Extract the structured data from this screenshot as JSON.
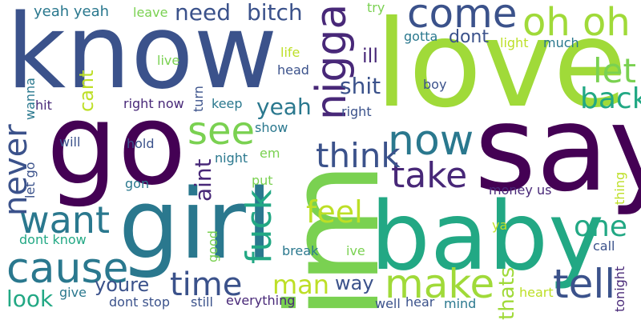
{
  "words": [
    {
      "text": "know",
      "color": "#3b528b"
    },
    {
      "text": "love",
      "color": "#a0da39"
    },
    {
      "text": "say",
      "color": "#440154"
    },
    {
      "text": "go",
      "color": "#440154"
    },
    {
      "text": "girl",
      "color": "#2a788e"
    },
    {
      "text": "baby",
      "color": "#22a884"
    },
    {
      "text": "im",
      "color": "#7ad151"
    },
    {
      "text": "nigga",
      "color": "#482878"
    },
    {
      "text": "come",
      "color": "#3b528b"
    },
    {
      "text": "oh oh",
      "color": "#a0da39"
    },
    {
      "text": "cause",
      "color": "#2a788e"
    },
    {
      "text": "now",
      "color": "#2a788e"
    },
    {
      "text": "make",
      "color": "#a0da39"
    },
    {
      "text": "take",
      "color": "#482878"
    },
    {
      "text": "see",
      "color": "#7ad151"
    },
    {
      "text": "want",
      "color": "#2a788e"
    },
    {
      "text": "tell",
      "color": "#3b528b"
    },
    {
      "text": "let",
      "color": "#7ad151"
    },
    {
      "text": "back",
      "color": "#22a884"
    },
    {
      "text": "time",
      "color": "#3b528b"
    },
    {
      "text": "never",
      "color": "#3b528b"
    },
    {
      "text": "think",
      "color": "#3b528b"
    },
    {
      "text": "one",
      "color": "#22a884"
    },
    {
      "text": "fuck",
      "color": "#22a884"
    },
    {
      "text": "feel",
      "color": "#bddf26"
    },
    {
      "text": "need",
      "color": "#3b528b"
    },
    {
      "text": "bitch",
      "color": "#3b528b"
    },
    {
      "text": "man",
      "color": "#bddf26"
    },
    {
      "text": "yeah",
      "color": "#2a788e"
    },
    {
      "text": "shit",
      "color": "#3b528b"
    },
    {
      "text": "aint",
      "color": "#482878"
    },
    {
      "text": "youre",
      "color": "#3b528b"
    },
    {
      "text": "way",
      "color": "#3b528b"
    },
    {
      "text": "look",
      "color": "#22a884"
    },
    {
      "text": "dont",
      "color": "#3b528b"
    },
    {
      "text": "thats",
      "color": "#a0da39"
    },
    {
      "text": "cant",
      "color": "#bddf26"
    },
    {
      "text": "ill",
      "color": "#482878"
    },
    {
      "text": "yeah yeah",
      "color": "#2a788e"
    },
    {
      "text": "leave",
      "color": "#7ad151"
    },
    {
      "text": "try",
      "color": "#7ad151"
    },
    {
      "text": "gotta",
      "color": "#2a788e"
    },
    {
      "text": "light",
      "color": "#bddf26"
    },
    {
      "text": "much",
      "color": "#2a788e"
    },
    {
      "text": "life",
      "color": "#bddf26"
    },
    {
      "text": "live",
      "color": "#7ad151"
    },
    {
      "text": "head",
      "color": "#3b528b"
    },
    {
      "text": "boy",
      "color": "#3b528b"
    },
    {
      "text": "right now",
      "color": "#482878"
    },
    {
      "text": "turn",
      "color": "#3b528b"
    },
    {
      "text": "keep",
      "color": "#2a788e"
    },
    {
      "text": "right",
      "color": "#3b528b"
    },
    {
      "text": "hit",
      "color": "#482878"
    },
    {
      "text": "wanna",
      "color": "#2a788e"
    },
    {
      "text": "will",
      "color": "#3b528b"
    },
    {
      "text": "hold",
      "color": "#3b528b"
    },
    {
      "text": "show",
      "color": "#2a788e"
    },
    {
      "text": "night",
      "color": "#2a788e"
    },
    {
      "text": "em",
      "color": "#7ad151"
    },
    {
      "text": "put",
      "color": "#7ad151"
    },
    {
      "text": "let go",
      "color": "#3b528b"
    },
    {
      "text": "gon",
      "color": "#2a788e"
    },
    {
      "text": "money",
      "color": "#482878"
    },
    {
      "text": "us",
      "color": "#482878"
    },
    {
      "text": "thing",
      "color": "#bddf26"
    },
    {
      "text": "dont know",
      "color": "#22a884"
    },
    {
      "text": "good",
      "color": "#7ad151"
    },
    {
      "text": "break",
      "color": "#2a788e"
    },
    {
      "text": "ive",
      "color": "#7ad151"
    },
    {
      "text": "ya",
      "color": "#bddf26"
    },
    {
      "text": "call",
      "color": "#3b528b"
    },
    {
      "text": "tonight",
      "color": "#482878"
    },
    {
      "text": "give",
      "color": "#2a788e"
    },
    {
      "text": "dont stop",
      "color": "#3b528b"
    },
    {
      "text": "still",
      "color": "#3b528b"
    },
    {
      "text": "everything",
      "color": "#482878"
    },
    {
      "text": "well",
      "color": "#3b528b"
    },
    {
      "text": "hear",
      "color": "#3b528b"
    },
    {
      "text": "mind",
      "color": "#2a788e"
    },
    {
      "text": "heart",
      "color": "#bddf26"
    }
  ]
}
